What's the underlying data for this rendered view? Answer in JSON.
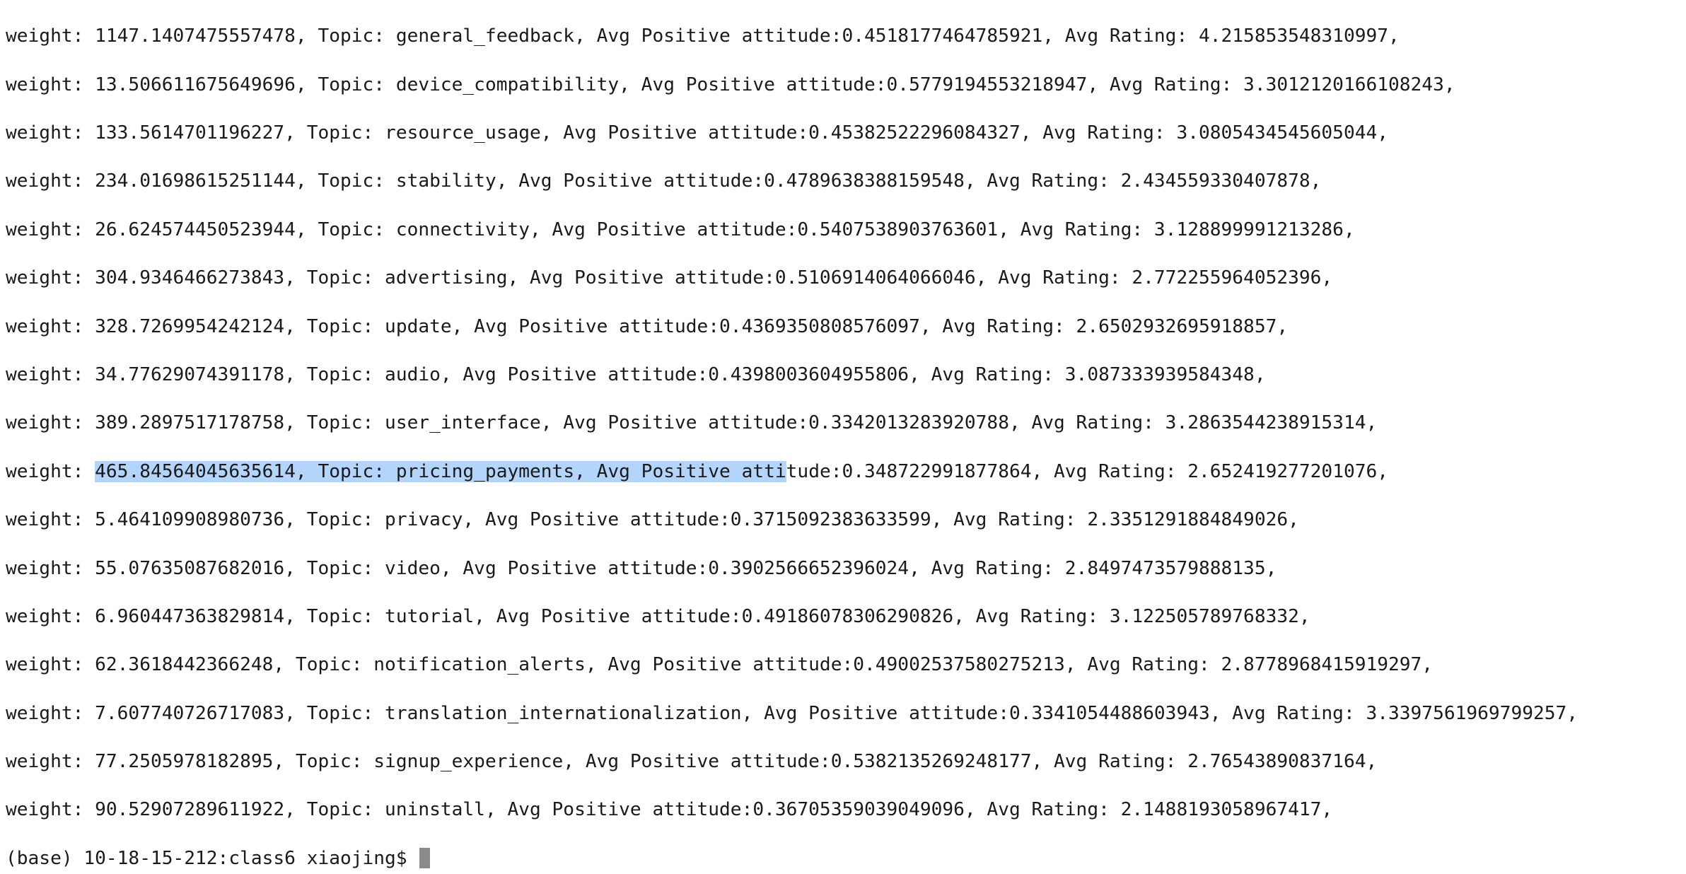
{
  "terminal": {
    "lines": [
      "weight: 1147.1407475557478, Topic: general_feedback, Avg Positive attitude:0.4518177464785921, Avg Rating: 4.215853548310997,",
      "weight: 13.506611675649696, Topic: device_compatibility, Avg Positive attitude:0.5779194553218947, Avg Rating: 3.3012120166108243,",
      "weight: 133.5614701196227, Topic: resource_usage, Avg Positive attitude:0.45382522296084327, Avg Rating: 3.0805434545605044,",
      "weight: 234.01698615251144, Topic: stability, Avg Positive attitude:0.4789638388159548, Avg Rating: 2.434559330407878,",
      "weight: 26.624574450523944, Topic: connectivity, Avg Positive attitude:0.5407538903763601, Avg Rating: 3.128899991213286,",
      "weight: 304.9346466273843, Topic: advertising, Avg Positive attitude:0.5106914064066046, Avg Rating: 2.772255964052396,",
      "weight: 328.7269954242124, Topic: update, Avg Positive attitude:0.4369350808576097, Avg Rating: 2.6502932695918857,",
      "weight: 34.77629074391178, Topic: audio, Avg Positive attitude:0.4398003604955806, Avg Rating: 3.087333939584348,",
      "weight: 389.2897517178758, Topic: user_interface, Avg Positive attitude:0.3342013283920788, Avg Rating: 3.2863544238915314,",
      "weight: 5.464109908980736, Topic: privacy, Avg Positive attitude:0.3715092383633599, Avg Rating: 2.3351291884849026,",
      "weight: 55.07635087682016, Topic: video, Avg Positive attitude:0.3902566652396024, Avg Rating: 2.8497473579888135,",
      "weight: 6.960447363829814, Topic: tutorial, Avg Positive attitude:0.49186078306290826, Avg Rating: 3.122505789768332,",
      "weight: 62.3618442366248, Topic: notification_alerts, Avg Positive attitude:0.49002537580275213, Avg Rating: 2.8778968415919297,",
      "weight: 7.607740726717083, Topic: translation_internationalization, Avg Positive attitude:0.3341054488603943, Avg Rating: 3.3397561969799257,",
      "weight: 77.2505978182895, Topic: signup_experience, Avg Positive attitude:0.5382135269248177, Avg Rating: 2.76543890837164,",
      "weight: 90.52907289611922, Topic: uninstall, Avg Positive attitude:0.36705359039049096, Avg Rating: 2.1488193058967417,"
    ],
    "highlighted_line": {
      "prefix": "weight: ",
      "selected": "465.84564045635614, Topic: pricing_payments, Avg Positive atti",
      "suffix": "tude:0.348722991877864, Avg Rating: 2.652419277201076,"
    },
    "prompt": "(base) 10-18-15-212:class6 xiaojing$ ",
    "colors": {
      "background": "#ffffff",
      "text": "#1a1a1a",
      "selection": "#b3d4fb",
      "cursor": "#8a8a8a"
    }
  }
}
